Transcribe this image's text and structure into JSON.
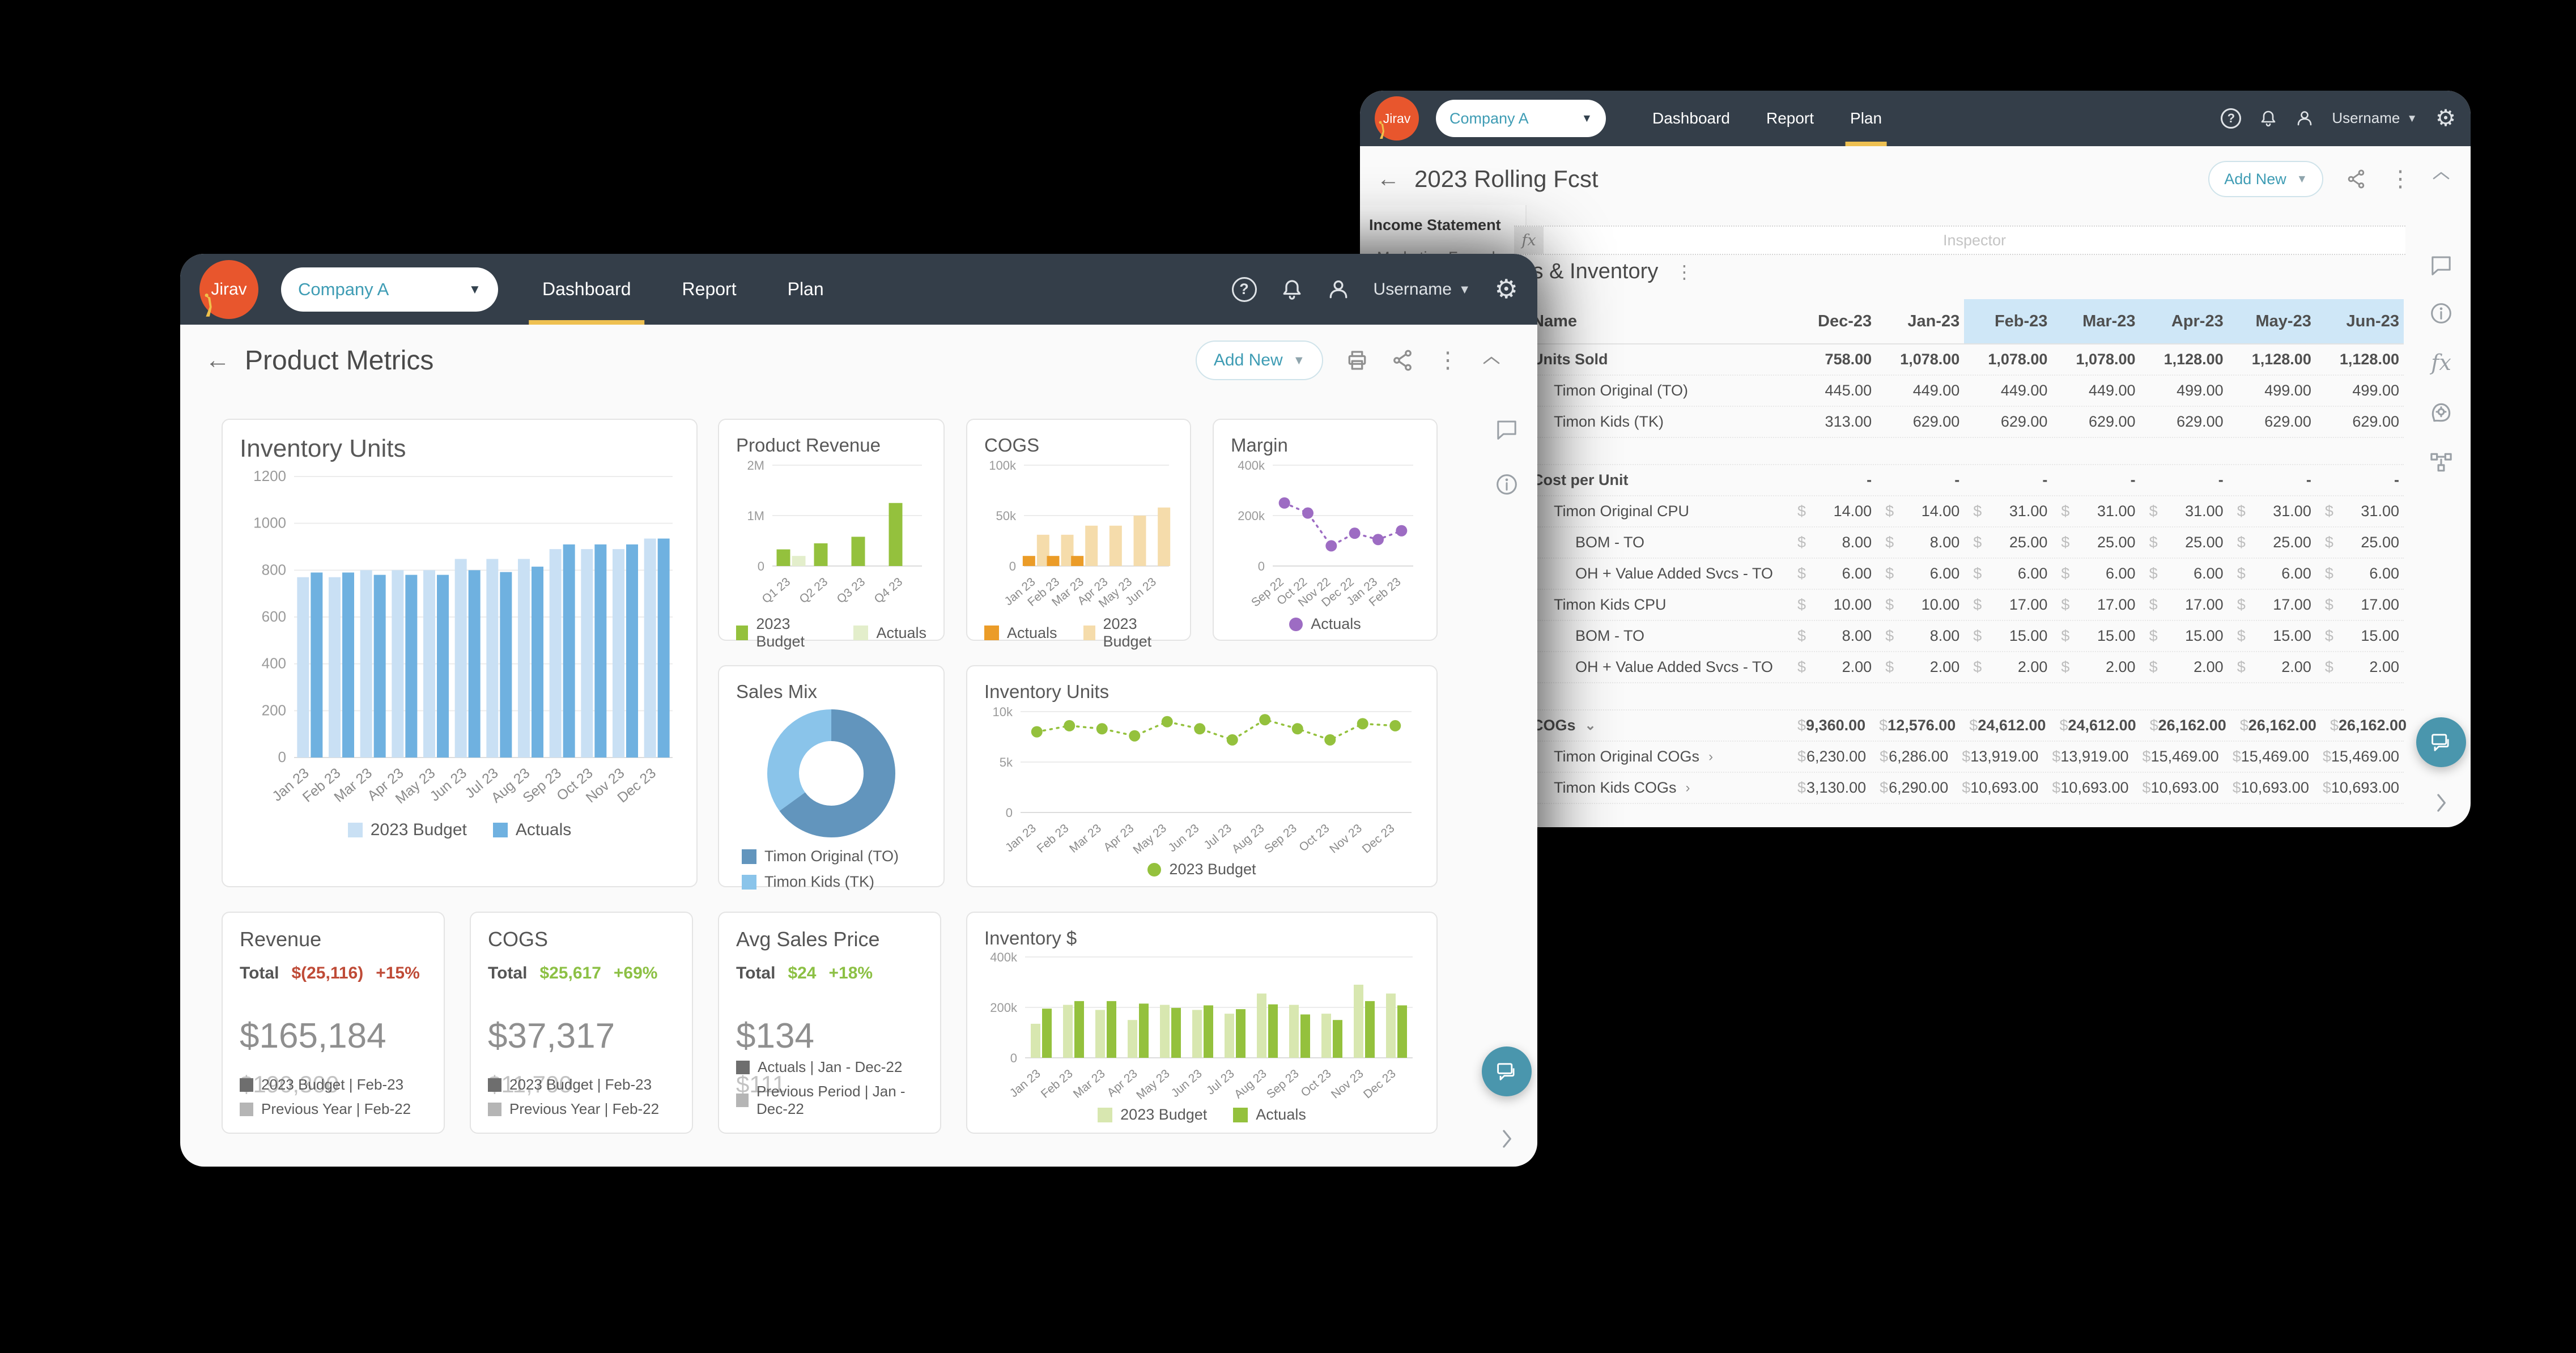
{
  "accent_colors": {
    "header_bg": "#343e49",
    "active_tab": "#eec051",
    "teal": "#3e9cb4",
    "logo_orange": "#e8562d",
    "highlight_blue": "#cfe7f7",
    "negative_red": "#bf4b37",
    "positive_green": "#8cc044"
  },
  "left_window": {
    "header": {
      "logo_text": "Jirav",
      "company": "Company A",
      "username": "Username",
      "tabs": [
        {
          "label": "Dashboard",
          "active": true
        },
        {
          "label": "Report",
          "active": false
        },
        {
          "label": "Plan",
          "active": false
        }
      ]
    },
    "toolbar": {
      "back": "←",
      "title": "Product Metrics",
      "add_new": "Add New"
    },
    "kpis": [
      {
        "title": "Revenue",
        "total_label": "Total",
        "delta": "$(25,116)",
        "delta_pct": "+15%",
        "delta_color": "#bf4b37",
        "value": "$165,184",
        "secondary": "$190,300",
        "legend": [
          {
            "color": "#6e6e6e",
            "label": "2023 Budget | Feb-23"
          },
          {
            "color": "#b5b5b5",
            "label": "Previous Year | Feb-22"
          }
        ]
      },
      {
        "title": "COGS",
        "total_label": "Total",
        "delta": "$25,617",
        "delta_pct": "+69%",
        "delta_color": "#8cc044",
        "value": "$37,317",
        "secondary": "$11,700",
        "legend": [
          {
            "color": "#6e6e6e",
            "label": "2023 Budget | Feb-23"
          },
          {
            "color": "#b5b5b5",
            "label": "Previous Year | Feb-22"
          }
        ]
      },
      {
        "title": "Avg Sales Price",
        "total_label": "Total",
        "delta": "$24",
        "delta_pct": "+18%",
        "delta_color": "#8cc044",
        "value": "$134",
        "secondary": "$111",
        "legend": [
          {
            "color": "#6e6e6e",
            "label": "Actuals | Jan - Dec-22"
          },
          {
            "color": "#b5b5b5",
            "label": "Previous Period | Jan - Dec-22"
          }
        ]
      }
    ]
  },
  "right_window": {
    "header": {
      "logo_text": "Jirav",
      "company": "Company A",
      "username": "Username",
      "tabs": [
        {
          "label": "Dashboard",
          "active": false
        },
        {
          "label": "Report",
          "active": false
        },
        {
          "label": "Plan",
          "active": true
        }
      ]
    },
    "toolbar": {
      "back": "←",
      "title": "2023 Rolling Fcst",
      "add_new": "Add New"
    },
    "sidebar": {
      "items": [
        "Income Statement",
        "Marketing Funnel"
      ]
    },
    "formula_bar": {
      "fx": "fx",
      "placeholder": "Inspector"
    },
    "sheet": {
      "title": "COGs & Inventory",
      "columns": [
        "Name",
        "Dec-23",
        "Jan-23",
        "Feb-23",
        "Mar-23",
        "Apr-23",
        "May-23",
        "Jun-23"
      ],
      "highlight_from_column": 3,
      "rows": [
        {
          "name": "Units Sold",
          "indent": 0,
          "bold": true,
          "currency": false,
          "values": [
            "758.00",
            "1,078.00",
            "1,078.00",
            "1,078.00",
            "1,128.00",
            "1,128.00",
            "1,128.00"
          ]
        },
        {
          "name": "Timon Original (TO)",
          "indent": 1,
          "currency": false,
          "values": [
            "445.00",
            "449.00",
            "449.00",
            "449.00",
            "499.00",
            "499.00",
            "499.00"
          ]
        },
        {
          "name": "Timon Kids (TK)",
          "indent": 1,
          "currency": false,
          "values": [
            "313.00",
            "629.00",
            "629.00",
            "629.00",
            "629.00",
            "629.00",
            "629.00"
          ]
        },
        {
          "spacer": true
        },
        {
          "name": "Cost per Unit",
          "indent": 0,
          "bold": true,
          "dashes": true,
          "values": [
            "-",
            "-",
            "-",
            "-",
            "-",
            "-",
            "-"
          ]
        },
        {
          "name": "Timon Original CPU",
          "indent": 1,
          "currency": true,
          "values": [
            "14.00",
            "14.00",
            "31.00",
            "31.00",
            "31.00",
            "31.00",
            "31.00"
          ]
        },
        {
          "name": "BOM - TO",
          "indent": 2,
          "currency": true,
          "values": [
            "8.00",
            "8.00",
            "25.00",
            "25.00",
            "25.00",
            "25.00",
            "25.00"
          ]
        },
        {
          "name": "OH + Value Added Svcs - TO",
          "indent": 2,
          "currency": true,
          "values": [
            "6.00",
            "6.00",
            "6.00",
            "6.00",
            "6.00",
            "6.00",
            "6.00"
          ]
        },
        {
          "name": "Timon Kids CPU",
          "indent": 1,
          "currency": true,
          "values": [
            "10.00",
            "10.00",
            "17.00",
            "17.00",
            "17.00",
            "17.00",
            "17.00"
          ]
        },
        {
          "name": "BOM - TO",
          "indent": 2,
          "currency": true,
          "values": [
            "8.00",
            "8.00",
            "15.00",
            "15.00",
            "15.00",
            "15.00",
            "15.00"
          ]
        },
        {
          "name": "OH + Value Added Svcs - TO",
          "indent": 2,
          "currency": true,
          "values": [
            "2.00",
            "2.00",
            "2.00",
            "2.00",
            "2.00",
            "2.00",
            "2.00"
          ]
        },
        {
          "spacer": true
        },
        {
          "name": "COGs",
          "indent": 0,
          "bold": true,
          "currency": true,
          "chevron": "down",
          "values": [
            "9,360.00",
            "12,576.00",
            "24,612.00",
            "24,612.00",
            "26,162.00",
            "26,162.00",
            "26,162.00"
          ]
        },
        {
          "name": "Timon Original COGs",
          "indent": 1,
          "currency": true,
          "chevron": "right",
          "values": [
            "6,230.00",
            "6,286.00",
            "13,919.00",
            "13,919.00",
            "15,469.00",
            "15,469.00",
            "15,469.00"
          ]
        },
        {
          "name": "Timon Kids COGs",
          "indent": 1,
          "currency": true,
          "chevron": "right",
          "values": [
            "3,130.00",
            "6,290.00",
            "10,693.00",
            "10,693.00",
            "10,693.00",
            "10,693.00",
            "10,693.00"
          ]
        }
      ]
    }
  },
  "chart_data": [
    {
      "id": "inventory_units_bar",
      "type": "bar",
      "title": "Inventory Units",
      "categories": [
        "Jan 23",
        "Feb 23",
        "Mar 23",
        "Apr 23",
        "May 23",
        "Jun 23",
        "Jul 23",
        "Aug 23",
        "Sep 23",
        "Oct 23",
        "Nov 23",
        "Dec 23"
      ],
      "series": [
        {
          "name": "2023 Budget",
          "color": "#c9e0f4",
          "values": [
            770,
            770,
            800,
            800,
            800,
            848,
            848,
            848,
            890,
            890,
            890,
            935
          ]
        },
        {
          "name": "Actuals",
          "color": "#6fb1e0",
          "values": [
            790,
            790,
            780,
            780,
            780,
            800,
            792,
            815,
            910,
            910,
            910,
            935
          ]
        }
      ],
      "ylim": [
        0,
        1200
      ],
      "yticks": [
        0,
        200,
        400,
        600,
        800,
        1000,
        1200
      ],
      "ytick_labels": [
        "0",
        "200",
        "400",
        "600",
        "800",
        "1000",
        "1200"
      ],
      "legend_position": "bottom"
    },
    {
      "id": "product_revenue",
      "type": "bar",
      "title": "Product Revenue",
      "categories": [
        "Q1 23",
        "Q2 23",
        "Q3 23",
        "Q4 23"
      ],
      "series": [
        {
          "name": "2023 Budget",
          "color": "#94c13d",
          "values": [
            330000,
            450000,
            580000,
            1250000
          ]
        },
        {
          "name": "Actuals",
          "color": "#e3eecb",
          "values": [
            200000,
            0,
            0,
            0
          ]
        }
      ],
      "ylim": [
        0,
        2000000
      ],
      "yticks": [
        0,
        1000000,
        2000000
      ],
      "ytick_labels": [
        "0",
        "1M",
        "2M"
      ],
      "legend_position": "bottom"
    },
    {
      "id": "cogs_chart",
      "type": "bar",
      "title": "COGS",
      "categories": [
        "Jan 23",
        "Feb 23",
        "Mar 23",
        "Apr 23",
        "May 23",
        "Jun 23"
      ],
      "series": [
        {
          "name": "Actuals",
          "color": "#eb9c28",
          "values": [
            10000,
            10000,
            10000,
            0,
            0,
            0
          ]
        },
        {
          "name": "2023 Budget",
          "color": "#f5dcab",
          "values": [
            31000,
            31000,
            40000,
            40000,
            50000,
            58000
          ]
        }
      ],
      "ylim": [
        0,
        100000
      ],
      "yticks": [
        0,
        50000,
        100000
      ],
      "ytick_labels": [
        "0",
        "50k",
        "100k"
      ],
      "legend_position": "bottom"
    },
    {
      "id": "margin_chart",
      "type": "line",
      "title": "Margin",
      "categories": [
        "Sep 22",
        "Oct 22",
        "Nov 22",
        "Dec 22",
        "Jan 23",
        "Feb 23"
      ],
      "series": [
        {
          "name": "Actuals",
          "color": "#9d6cc3",
          "values": [
            250000,
            210000,
            80000,
            130000,
            105000,
            140000
          ]
        }
      ],
      "ylim": [
        0,
        400000
      ],
      "yticks": [
        0,
        200000,
        400000
      ],
      "ytick_labels": [
        "0",
        "200k",
        "400k"
      ],
      "legend_position": "bottom-left"
    },
    {
      "id": "sales_mix",
      "type": "pie",
      "title": "Sales Mix",
      "slices": [
        {
          "name": "Timon Original (TO)",
          "color": "#6295bd",
          "value": 65
        },
        {
          "name": "Timon Kids (TK)",
          "color": "#8ac4ea",
          "value": 35
        }
      ],
      "legend_position": "bottom-left"
    },
    {
      "id": "inventory_units_line",
      "type": "line",
      "title": "Inventory Units",
      "categories": [
        "Jan 23",
        "Feb 23",
        "Mar 23",
        "Apr 23",
        "May 23",
        "Jun 23",
        "Jul 23",
        "Aug 23",
        "Sep 23",
        "Oct 23",
        "Nov 23",
        "Dec 23"
      ],
      "series": [
        {
          "name": "2023 Budget",
          "color": "#94c13d",
          "values": [
            8000,
            8600,
            8300,
            7600,
            9000,
            8300,
            7200,
            9200,
            8300,
            7200,
            8800,
            8600
          ]
        }
      ],
      "ylim": [
        0,
        10000
      ],
      "yticks": [
        0,
        5000,
        10000
      ],
      "ytick_labels": [
        "0",
        "5k",
        "10k"
      ],
      "legend_position": "bottom"
    },
    {
      "id": "inventory_dollars",
      "type": "bar",
      "title": "Inventory $",
      "categories": [
        "Jan 23",
        "Feb 23",
        "Mar 23",
        "Apr 23",
        "May 23",
        "Jun 23",
        "Jul 23",
        "Aug 23",
        "Sep 23",
        "Oct 23",
        "Nov 23",
        "Dec 23"
      ],
      "series": [
        {
          "name": "2023 Budget",
          "color": "#d8e7b0",
          "values": [
            135000,
            210000,
            190000,
            150000,
            210000,
            190000,
            175000,
            255000,
            210000,
            175000,
            290000,
            255000
          ]
        },
        {
          "name": "Actuals",
          "color": "#94c13d",
          "values": [
            195000,
            225000,
            225000,
            215000,
            198000,
            208000,
            193000,
            212000,
            172000,
            150000,
            225000,
            208000
          ]
        }
      ],
      "ylim": [
        0,
        400000
      ],
      "yticks": [
        0,
        200000,
        400000
      ],
      "ytick_labels": [
        "0",
        "200k",
        "400k"
      ],
      "legend_position": "bottom"
    }
  ]
}
